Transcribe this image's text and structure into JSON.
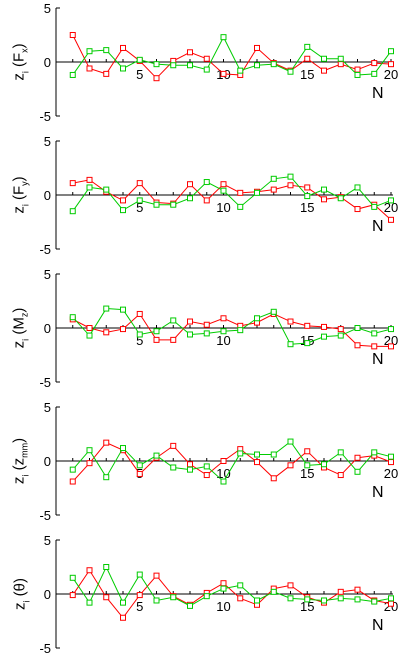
{
  "colors": {
    "series_1": "#ff0000",
    "series_2": "#00cc00",
    "axis": "#000000"
  },
  "chart_data": [
    {
      "type": "line",
      "ylabel": "z_i (F_x)",
      "ylabel_parts": {
        "main": "z",
        "sub_i": "i",
        "arg": "(F",
        "arg_sub": "x",
        "close": ")"
      },
      "xlabel": "N",
      "x": [
        1,
        2,
        3,
        4,
        5,
        6,
        7,
        8,
        9,
        10,
        11,
        12,
        13,
        14,
        15,
        16,
        17,
        18,
        19,
        20
      ],
      "xticks": [
        "5",
        "10",
        "15",
        "20"
      ],
      "yticks": [
        "5",
        "0",
        "-5"
      ],
      "ylim": [
        -5,
        5
      ],
      "xlim": [
        0,
        20
      ],
      "series": [
        {
          "color": "red",
          "values": [
            2.5,
            -0.6,
            -1.1,
            1.3,
            0.1,
            -1.5,
            0.1,
            0.9,
            0.3,
            -1.1,
            -1.2,
            1.3,
            -0.1,
            -0.8,
            0.3,
            -0.8,
            -0.2,
            -0.7,
            -0.1,
            -0.2
          ]
        },
        {
          "color": "green",
          "values": [
            -1.2,
            1.0,
            1.1,
            -0.6,
            0.2,
            -0.2,
            -0.3,
            -0.3,
            -0.7,
            2.3,
            -0.8,
            -0.3,
            -0.2,
            -0.9,
            1.4,
            0.3,
            0.3,
            -1.2,
            -1.1,
            1.0
          ]
        }
      ]
    },
    {
      "type": "line",
      "ylabel": "z_i (F_y)",
      "ylabel_parts": {
        "main": "z",
        "sub_i": "i",
        "arg": "(F",
        "arg_sub": "y",
        "close": ")"
      },
      "xlabel": "N",
      "x": [
        1,
        2,
        3,
        4,
        5,
        6,
        7,
        8,
        9,
        10,
        11,
        12,
        13,
        14,
        15,
        16,
        17,
        18,
        19,
        20
      ],
      "xticks": [
        "5",
        "10",
        "15",
        "20"
      ],
      "yticks": [
        "5",
        "0",
        "-5"
      ],
      "ylim": [
        -5,
        5
      ],
      "xlim": [
        0,
        20
      ],
      "series": [
        {
          "color": "red",
          "values": [
            1.1,
            1.4,
            0.3,
            -0.5,
            1.1,
            -0.7,
            -0.8,
            1.0,
            -0.5,
            1.0,
            0.2,
            0.3,
            0.5,
            0.9,
            0.7,
            -0.4,
            -0.2,
            -1.3,
            -0.9,
            -2.3
          ]
        },
        {
          "color": "green",
          "values": [
            -1.5,
            0.7,
            0.5,
            -1.4,
            -0.5,
            -0.9,
            -0.9,
            -0.3,
            1.2,
            0.4,
            -1.1,
            0.2,
            1.5,
            1.7,
            -0.1,
            0.5,
            -0.3,
            0.7,
            -1.1,
            -0.5
          ]
        }
      ]
    },
    {
      "type": "line",
      "ylabel": "z_i (M_z)",
      "ylabel_parts": {
        "main": "z",
        "sub_i": "i",
        "arg": "(M",
        "arg_sub": "z",
        "close": ")"
      },
      "xlabel": "N",
      "x": [
        1,
        2,
        3,
        4,
        5,
        6,
        7,
        8,
        9,
        10,
        11,
        12,
        13,
        14,
        15,
        16,
        17,
        18,
        19,
        20
      ],
      "xticks": [
        "5",
        "10",
        "15",
        "20"
      ],
      "yticks": [
        "5",
        "0",
        "-5"
      ],
      "ylim": [
        -5,
        5
      ],
      "xlim": [
        0,
        20
      ],
      "series": [
        {
          "color": "red",
          "values": [
            0.8,
            0.0,
            -0.4,
            -0.1,
            1.3,
            -1.1,
            -1.1,
            0.6,
            0.3,
            0.9,
            0.2,
            0.5,
            1.3,
            0.6,
            0.2,
            0.1,
            -0.1,
            -1.6,
            -1.7,
            -1.7
          ]
        },
        {
          "color": "green",
          "values": [
            1.0,
            -0.7,
            1.8,
            1.7,
            -0.6,
            -0.3,
            0.7,
            -0.6,
            -0.5,
            -0.3,
            -0.2,
            0.9,
            1.5,
            -1.5,
            -1.4,
            -0.8,
            -0.7,
            0.0,
            -0.5,
            -0.1
          ]
        }
      ]
    },
    {
      "type": "line",
      "ylabel": "z_i (z_mm)",
      "ylabel_parts": {
        "main": "z",
        "sub_i": "i",
        "arg": "(z",
        "arg_sub": "mm",
        "close": ")"
      },
      "xlabel": "N",
      "x": [
        1,
        2,
        3,
        4,
        5,
        6,
        7,
        8,
        9,
        10,
        11,
        12,
        13,
        14,
        15,
        16,
        17,
        18,
        19,
        20
      ],
      "xticks": [
        "5",
        "10",
        "15",
        "20"
      ],
      "yticks": [
        "5",
        "0",
        "-5"
      ],
      "ylim": [
        -5,
        5
      ],
      "xlim": [
        0,
        20
      ],
      "series": [
        {
          "color": "red",
          "values": [
            -1.9,
            -0.2,
            1.7,
            1.0,
            -1.2,
            0.3,
            1.4,
            -0.3,
            -1.3,
            0.0,
            1.1,
            -0.1,
            -1.6,
            -0.4,
            0.9,
            -0.6,
            -1.3,
            0.3,
            0.5,
            -0.1
          ]
        },
        {
          "color": "green",
          "values": [
            -0.8,
            1.0,
            -1.5,
            1.2,
            -0.4,
            0.5,
            -0.6,
            -0.8,
            -0.5,
            -1.9,
            0.7,
            0.6,
            0.6,
            1.8,
            -0.4,
            -0.3,
            0.8,
            -1.0,
            0.8,
            0.4
          ]
        }
      ]
    },
    {
      "type": "line",
      "ylabel": "z_i (θ)",
      "ylabel_parts": {
        "main": "z",
        "sub_i": "i",
        "arg": "(θ",
        "arg_sub": "",
        "close": ")"
      },
      "xlabel": "N",
      "x": [
        1,
        2,
        3,
        4,
        5,
        6,
        7,
        8,
        9,
        10,
        11,
        12,
        13,
        14,
        15,
        16,
        17,
        18,
        19,
        20
      ],
      "xticks": [
        "5",
        "10",
        "15",
        "20"
      ],
      "yticks": [
        "5",
        "0",
        "-5"
      ],
      "ylim": [
        -5,
        5
      ],
      "xlim": [
        0,
        20
      ],
      "series": [
        {
          "color": "red",
          "values": [
            -0.1,
            2.2,
            -0.3,
            -2.2,
            -0.1,
            1.7,
            -0.2,
            -1.0,
            0.1,
            1.0,
            -0.4,
            -1.0,
            0.5,
            0.8,
            -0.3,
            -0.8,
            0.2,
            0.4,
            -0.6,
            -0.9
          ]
        },
        {
          "color": "green",
          "values": [
            1.5,
            -0.8,
            2.5,
            -0.8,
            1.8,
            -0.6,
            -0.3,
            -1.1,
            -0.2,
            0.5,
            0.8,
            -0.6,
            0.2,
            -0.4,
            -0.5,
            -0.6,
            -0.4,
            -0.5,
            -0.7,
            -0.4
          ]
        }
      ]
    }
  ]
}
